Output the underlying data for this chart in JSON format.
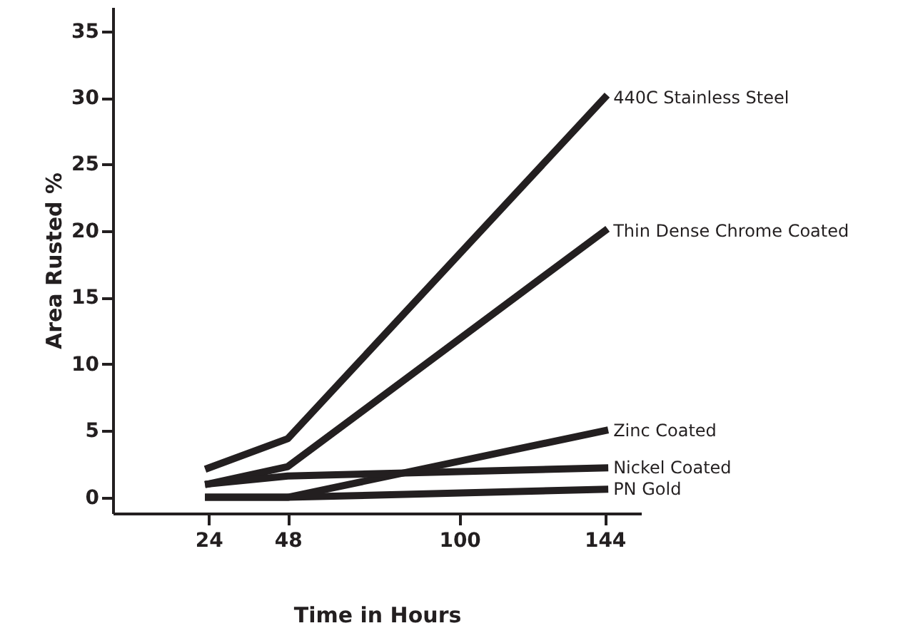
{
  "chart_data": {
    "type": "line",
    "xlabel": "Time in Hours",
    "ylabel": "Area Rusted %",
    "x": [
      24,
      48,
      144
    ],
    "xlim": [
      -5,
      155
    ],
    "xticks": [
      24,
      48,
      100,
      144
    ],
    "ylim": [
      -1.2,
      36.8
    ],
    "yticks": [
      0,
      5,
      10,
      15,
      20,
      25,
      30,
      35
    ],
    "grid": false,
    "legend": false,
    "marker": "none",
    "line_style": "solid",
    "series": [
      {
        "name": "440C Stainless Steel",
        "color": "#231f20",
        "values": [
          2.2,
          4.4,
          30
        ]
      },
      {
        "name": "Thin Dense Chrome Coated",
        "color": "#231f20",
        "values": [
          1.0,
          2.3,
          20
        ]
      },
      {
        "name": "Zinc Coated",
        "color": "#231f20",
        "values": [
          0,
          0,
          5.0
        ]
      },
      {
        "name": "Nickel Coated",
        "color": "#231f20",
        "values": [
          1.0,
          1.6,
          2.2
        ]
      },
      {
        "name": "PN Gold",
        "color": "#231f20",
        "values": [
          0,
          0,
          0.6
        ]
      }
    ]
  }
}
